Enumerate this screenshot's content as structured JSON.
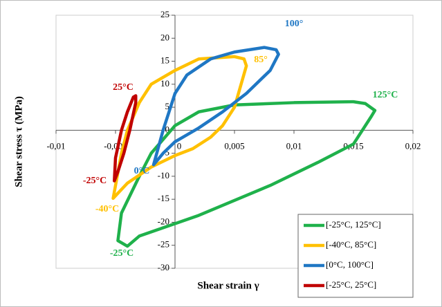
{
  "chart_data": {
    "type": "line",
    "x_label": "Shear strain γ",
    "y_label": "Shear stress τ (MPa)",
    "xlim": [
      -0.01,
      0.02
    ],
    "ylim": [
      -30,
      25
    ],
    "xticks": [
      {
        "value": -0.01,
        "label": "-0,01"
      },
      {
        "value": -0.005,
        "label": "-0,005"
      },
      0,
      {
        "value": 0.005,
        "label": "0,005"
      },
      {
        "value": 0.01,
        "label": "0,01"
      },
      {
        "value": 0.015,
        "label": "0,015"
      },
      {
        "value": 0.02,
        "label": "0,02"
      }
    ],
    "yticks": [
      25,
      20,
      15,
      10,
      5,
      0,
      -5,
      -10,
      -15,
      -20,
      -25,
      -30
    ],
    "legend": "lower right",
    "series": [
      {
        "name": "[-25°C, 125°C]",
        "color": "#1fb14b",
        "x": [
          -0.0048,
          -0.004,
          -0.003,
          0.002,
          0.008,
          0.012,
          0.015,
          0.0165,
          0.0168,
          0.016,
          0.015,
          0.01,
          0.005,
          0.002,
          0,
          -0.002,
          -0.003,
          -0.0045
        ],
        "values": [
          -24,
          -25.2,
          -23,
          -18.5,
          -12,
          -7,
          -3,
          3,
          4.3,
          5.8,
          6.2,
          6,
          5.5,
          4,
          1,
          -5,
          -10,
          -18
        ]
      },
      {
        "name": "[-40°C, 85°C]",
        "color": "#ffc000",
        "x": [
          -0.0052,
          -0.0045,
          -0.004,
          -0.003,
          -0.002,
          0,
          0.002,
          0.005,
          0.0058,
          0.006,
          0.005,
          0.004,
          0.003,
          0.0015,
          0,
          -0.002,
          -0.004
        ],
        "values": [
          -14.8,
          -5,
          0,
          6,
          10,
          13,
          15.5,
          16,
          15.5,
          14,
          5,
          1,
          -1.5,
          -4,
          -5.5,
          -8,
          -11.5
        ]
      },
      {
        "name": "[0°C, 100°C]",
        "color": "#1f77c4",
        "x": [
          -0.0018,
          -0.001,
          0,
          0.001,
          0.003,
          0.005,
          0.0075,
          0.0085,
          0.0087,
          0.008,
          0.006,
          0.004,
          0.002,
          0,
          -0.001
        ],
        "values": [
          -7.5,
          0,
          8,
          12,
          15.5,
          17,
          18,
          17.5,
          16.5,
          13,
          8,
          4,
          0.5,
          -2.5,
          -5
        ]
      },
      {
        "name": "[-25°C, 25°C]",
        "color": "#c00000",
        "x": [
          -0.0051,
          -0.005,
          -0.0045,
          -0.004,
          -0.0035,
          -0.0033,
          -0.0033,
          -0.0038,
          -0.0043,
          -0.0048
        ],
        "values": [
          -11,
          -6,
          0,
          4,
          7.2,
          7.5,
          6,
          0,
          -5,
          -9
        ]
      }
    ],
    "annotations": [
      {
        "text": "100°",
        "color": "#1f77c4"
      },
      {
        "text": "85°",
        "color": "#ffc000"
      },
      {
        "text": "125°C",
        "color": "#1fb14b"
      },
      {
        "text": "25°C",
        "color": "#c00000"
      },
      {
        "text": "-25°C",
        "color": "#c00000"
      },
      {
        "text": "0°C",
        "color": "#1f77c4"
      },
      {
        "text": "-40°C",
        "color": "#ffc000"
      },
      {
        "text": "-25°C",
        "color": "#1fb14b"
      }
    ]
  }
}
